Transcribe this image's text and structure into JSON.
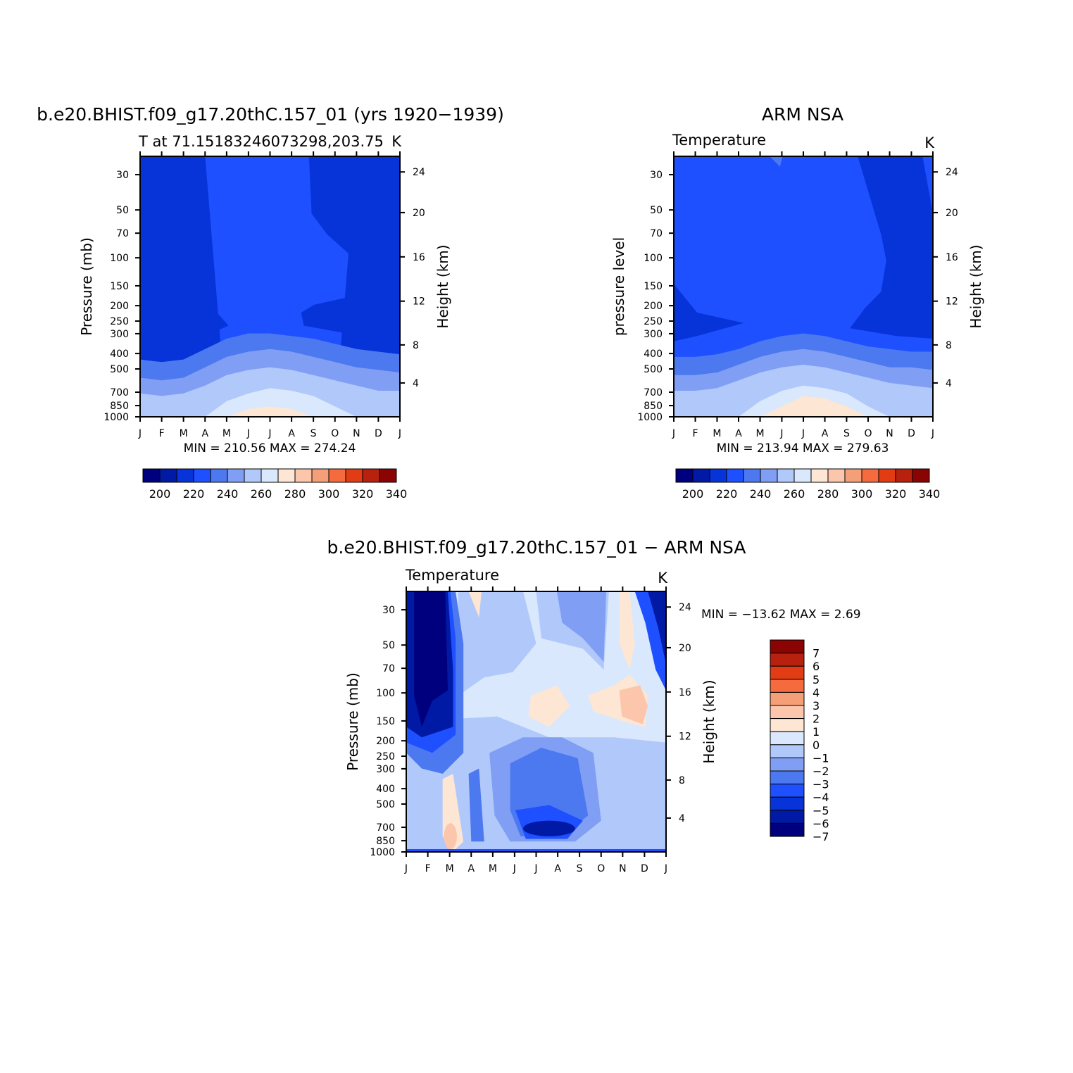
{
  "colors": {
    "abs_levels": [
      "#00007e",
      "#001aa6",
      "#0634d8",
      "#1e50ff",
      "#4d79f0",
      "#809ff4",
      "#b1c8fb",
      "#d9e8fc",
      "#fde6d3",
      "#fcc6ad",
      "#f59f78",
      "#f66b3d",
      "#e13c14",
      "#b9210f",
      "#8a0404"
    ],
    "diff_levels": [
      "#00007e",
      "#001aa6",
      "#0634d8",
      "#1e50ff",
      "#4d79f0",
      "#809ff4",
      "#b1c8fb",
      "#d9e8fc",
      "#fde6d3",
      "#fcc6ad",
      "#f59f78",
      "#f66b3d",
      "#e13c14",
      "#b9210f",
      "#8a0404"
    ]
  },
  "chart_data": [
    {
      "type": "heatmap",
      "title": "b.e20.BHIST.f09_g17.20thC.157_01 (yrs 1920-1939)",
      "subtitle": "T at 71.15183246073298,203.75",
      "units": "K",
      "ylabel": "Pressure (mb)",
      "ylabel_right": "Height (km)",
      "x_ticks": [
        "J",
        "F",
        "M",
        "A",
        "M",
        "J",
        "J",
        "A",
        "S",
        "O",
        "N",
        "D",
        "J"
      ],
      "y_ticks": [
        "30",
        "50",
        "70",
        "100",
        "150",
        "200",
        "250",
        "300",
        "400",
        "500",
        "700",
        "850",
        "1000"
      ],
      "y_ticks_right": [
        "24",
        "20",
        "16",
        "12",
        "8",
        "4"
      ],
      "min_max_text": "MIN = 210.56 MAX = 274.24",
      "colorbar_labels": [
        "200",
        "220",
        "240",
        "260",
        "280",
        "300",
        "320",
        "340"
      ],
      "min": 210.56,
      "max": 274.24
    },
    {
      "type": "heatmap",
      "title": "ARM NSA",
      "subtitle": "Temperature",
      "units": "K",
      "ylabel": "pressure level",
      "ylabel_right": "Height (km)",
      "x_ticks": [
        "J",
        "F",
        "M",
        "A",
        "M",
        "J",
        "J",
        "A",
        "S",
        "O",
        "N",
        "D",
        "J"
      ],
      "y_ticks": [
        "30",
        "50",
        "70",
        "100",
        "150",
        "200",
        "250",
        "300",
        "400",
        "500",
        "700",
        "850",
        "1000"
      ],
      "y_ticks_right": [
        "24",
        "20",
        "16",
        "12",
        "8",
        "4"
      ],
      "min_max_text": "MIN = 213.94 MAX = 279.63",
      "colorbar_labels": [
        "200",
        "220",
        "240",
        "260",
        "280",
        "300",
        "320",
        "340"
      ],
      "min": 213.94,
      "max": 279.63
    },
    {
      "type": "heatmap",
      "title": "b.e20.BHIST.f09_g17.20thC.157_01 - ARM NSA",
      "subtitle": "Temperature",
      "units": "K",
      "ylabel": "Pressure (mb)",
      "ylabel_right": "Height (km)",
      "x_ticks": [
        "J",
        "F",
        "M",
        "A",
        "M",
        "J",
        "J",
        "A",
        "S",
        "O",
        "N",
        "D",
        "J"
      ],
      "y_ticks": [
        "30",
        "50",
        "70",
        "100",
        "150",
        "200",
        "250",
        "300",
        "400",
        "500",
        "700",
        "850",
        "1000"
      ],
      "y_ticks_right": [
        "24",
        "20",
        "16",
        "12",
        "8",
        "4"
      ],
      "min_max_text": "MIN = -13.62 MAX =    2.69",
      "colorbar_labels": [
        "7",
        "6",
        "5",
        "4",
        "3",
        "2",
        "1",
        "0",
        "-1",
        "-2",
        "-3",
        "-4",
        "-5",
        "-6",
        "-7"
      ],
      "min": -13.62,
      "max": 2.69
    }
  ]
}
